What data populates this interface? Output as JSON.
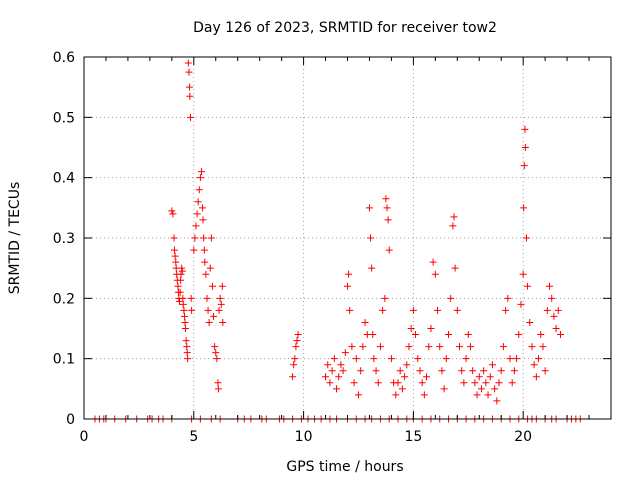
{
  "chart_data": {
    "type": "scatter",
    "title": "Day 126 of 2023, SRMTID for receiver tow2",
    "xlabel": "GPS time / hours",
    "ylabel": "SRMTID / TECUs",
    "xlim": [
      0,
      24
    ],
    "ylim": [
      0,
      0.6
    ],
    "xticks": [
      0,
      5,
      10,
      15,
      20
    ],
    "xtick_labels": [
      "0",
      "5",
      "10",
      "15",
      "20"
    ],
    "yticks": [
      0,
      0.1,
      0.2,
      0.3,
      0.4,
      0.5,
      0.6
    ],
    "ytick_labels": [
      "0",
      "0.1",
      "0.2",
      "0.3",
      "0.4",
      "0.5",
      "0.6"
    ],
    "grid": true,
    "marker": "+",
    "color": "#ff0000",
    "series": [
      {
        "name": "tow2",
        "points": [
          [
            0.5,
            0
          ],
          [
            0.7,
            0
          ],
          [
            0.9,
            0
          ],
          [
            1.0,
            0
          ],
          [
            1.4,
            0
          ],
          [
            1.9,
            0
          ],
          [
            2.4,
            0
          ],
          [
            2.9,
            0
          ],
          [
            3.1,
            0
          ],
          [
            3.4,
            0
          ],
          [
            3.6,
            0
          ],
          [
            4.0,
            0
          ],
          [
            4.9,
            0
          ],
          [
            5.3,
            0
          ],
          [
            5.8,
            0
          ],
          [
            6.2,
            0
          ],
          [
            7.0,
            0
          ],
          [
            7.3,
            0
          ],
          [
            7.6,
            0
          ],
          [
            8.1,
            0
          ],
          [
            8.3,
            0
          ],
          [
            8.9,
            0
          ],
          [
            9.1,
            0
          ],
          [
            9.5,
            0
          ],
          [
            9.9,
            0
          ],
          [
            10.2,
            0
          ],
          [
            10.5,
            0
          ],
          [
            10.8,
            0
          ],
          [
            11.2,
            0
          ],
          [
            11.5,
            0
          ],
          [
            12.0,
            0
          ],
          [
            12.4,
            0
          ],
          [
            12.8,
            0
          ],
          [
            13.1,
            0
          ],
          [
            13.5,
            0
          ],
          [
            13.9,
            0
          ],
          [
            14.3,
            0
          ],
          [
            14.7,
            0
          ],
          [
            15.0,
            0
          ],
          [
            15.4,
            0
          ],
          [
            15.8,
            0
          ],
          [
            16.2,
            0
          ],
          [
            16.6,
            0
          ],
          [
            17.0,
            0
          ],
          [
            17.4,
            0
          ],
          [
            17.8,
            0
          ],
          [
            18.2,
            0
          ],
          [
            18.6,
            0
          ],
          [
            19.0,
            0
          ],
          [
            19.4,
            0
          ],
          [
            19.8,
            0
          ],
          [
            20.2,
            0
          ],
          [
            20.4,
            0
          ],
          [
            20.6,
            0
          ],
          [
            21.0,
            0
          ],
          [
            21.3,
            0
          ],
          [
            21.5,
            0
          ],
          [
            22.0,
            0
          ],
          [
            22.2,
            0
          ],
          [
            22.4,
            0
          ],
          [
            22.6,
            0
          ],
          [
            4.0,
            0.345
          ],
          [
            4.05,
            0.34
          ],
          [
            4.1,
            0.3
          ],
          [
            4.12,
            0.28
          ],
          [
            4.15,
            0.27
          ],
          [
            4.18,
            0.26
          ],
          [
            4.2,
            0.25
          ],
          [
            4.22,
            0.24
          ],
          [
            4.25,
            0.23
          ],
          [
            4.28,
            0.22
          ],
          [
            4.3,
            0.21
          ],
          [
            4.32,
            0.2
          ],
          [
            4.35,
            0.195
          ],
          [
            4.38,
            0.21
          ],
          [
            4.4,
            0.23
          ],
          [
            4.42,
            0.24
          ],
          [
            4.45,
            0.25
          ],
          [
            4.48,
            0.245
          ],
          [
            4.5,
            0.2
          ],
          [
            4.52,
            0.19
          ],
          [
            4.55,
            0.18
          ],
          [
            4.58,
            0.17
          ],
          [
            4.6,
            0.16
          ],
          [
            4.62,
            0.15
          ],
          [
            4.65,
            0.13
          ],
          [
            4.68,
            0.12
          ],
          [
            4.7,
            0.11
          ],
          [
            4.72,
            0.1
          ],
          [
            4.75,
            0.59
          ],
          [
            4.78,
            0.575
          ],
          [
            4.8,
            0.55
          ],
          [
            4.82,
            0.535
          ],
          [
            4.85,
            0.5
          ],
          [
            4.88,
            0.2
          ],
          [
            4.9,
            0.18
          ],
          [
            5.0,
            0.28
          ],
          [
            5.05,
            0.3
          ],
          [
            5.1,
            0.32
          ],
          [
            5.15,
            0.34
          ],
          [
            5.2,
            0.36
          ],
          [
            5.25,
            0.38
          ],
          [
            5.3,
            0.4
          ],
          [
            5.35,
            0.41
          ],
          [
            5.4,
            0.35
          ],
          [
            5.42,
            0.33
          ],
          [
            5.45,
            0.3
          ],
          [
            5.48,
            0.28
          ],
          [
            5.5,
            0.26
          ],
          [
            5.55,
            0.24
          ],
          [
            5.6,
            0.2
          ],
          [
            5.65,
            0.18
          ],
          [
            5.7,
            0.16
          ],
          [
            5.75,
            0.25
          ],
          [
            5.8,
            0.3
          ],
          [
            5.85,
            0.22
          ],
          [
            5.9,
            0.17
          ],
          [
            5.95,
            0.12
          ],
          [
            6.0,
            0.11
          ],
          [
            6.05,
            0.1
          ],
          [
            6.1,
            0.06
          ],
          [
            6.12,
            0.05
          ],
          [
            6.15,
            0.18
          ],
          [
            6.2,
            0.2
          ],
          [
            6.25,
            0.19
          ],
          [
            6.3,
            0.22
          ],
          [
            6.32,
            0.16
          ],
          [
            9.5,
            0.07
          ],
          [
            9.55,
            0.09
          ],
          [
            9.6,
            0.1
          ],
          [
            9.65,
            0.12
          ],
          [
            9.7,
            0.13
          ],
          [
            9.75,
            0.14
          ],
          [
            11.0,
            0.07
          ],
          [
            11.1,
            0.09
          ],
          [
            11.2,
            0.06
          ],
          [
            11.3,
            0.08
          ],
          [
            11.4,
            0.1
          ],
          [
            11.5,
            0.05
          ],
          [
            11.6,
            0.07
          ],
          [
            11.7,
            0.09
          ],
          [
            11.8,
            0.08
          ],
          [
            11.9,
            0.11
          ],
          [
            12.0,
            0.22
          ],
          [
            12.05,
            0.24
          ],
          [
            12.1,
            0.18
          ],
          [
            12.2,
            0.12
          ],
          [
            12.3,
            0.06
          ],
          [
            12.4,
            0.1
          ],
          [
            12.5,
            0.04
          ],
          [
            12.6,
            0.08
          ],
          [
            12.7,
            0.12
          ],
          [
            12.8,
            0.16
          ],
          [
            12.9,
            0.14
          ],
          [
            13.0,
            0.35
          ],
          [
            13.05,
            0.3
          ],
          [
            13.1,
            0.25
          ],
          [
            13.15,
            0.14
          ],
          [
            13.2,
            0.1
          ],
          [
            13.3,
            0.08
          ],
          [
            13.4,
            0.06
          ],
          [
            13.5,
            0.12
          ],
          [
            13.6,
            0.18
          ],
          [
            13.7,
            0.2
          ],
          [
            13.75,
            0.365
          ],
          [
            13.8,
            0.35
          ],
          [
            13.85,
            0.33
          ],
          [
            13.9,
            0.28
          ],
          [
            14.0,
            0.1
          ],
          [
            14.1,
            0.06
          ],
          [
            14.2,
            0.04
          ],
          [
            14.3,
            0.06
          ],
          [
            14.4,
            0.08
          ],
          [
            14.5,
            0.05
          ],
          [
            14.6,
            0.07
          ],
          [
            14.7,
            0.09
          ],
          [
            14.8,
            0.12
          ],
          [
            14.9,
            0.15
          ],
          [
            15.0,
            0.18
          ],
          [
            15.1,
            0.14
          ],
          [
            15.2,
            0.1
          ],
          [
            15.3,
            0.08
          ],
          [
            15.4,
            0.06
          ],
          [
            15.5,
            0.04
          ],
          [
            15.6,
            0.07
          ],
          [
            15.7,
            0.12
          ],
          [
            15.8,
            0.15
          ],
          [
            15.9,
            0.26
          ],
          [
            16.0,
            0.24
          ],
          [
            16.1,
            0.18
          ],
          [
            16.2,
            0.12
          ],
          [
            16.3,
            0.08
          ],
          [
            16.4,
            0.05
          ],
          [
            16.5,
            0.1
          ],
          [
            16.6,
            0.14
          ],
          [
            16.7,
            0.2
          ],
          [
            16.8,
            0.32
          ],
          [
            16.85,
            0.335
          ],
          [
            16.9,
            0.25
          ],
          [
            17.0,
            0.18
          ],
          [
            17.1,
            0.12
          ],
          [
            17.2,
            0.08
          ],
          [
            17.3,
            0.06
          ],
          [
            17.4,
            0.1
          ],
          [
            17.5,
            0.14
          ],
          [
            17.6,
            0.12
          ],
          [
            17.7,
            0.08
          ],
          [
            17.8,
            0.06
          ],
          [
            17.9,
            0.04
          ],
          [
            18.0,
            0.07
          ],
          [
            18.1,
            0.05
          ],
          [
            18.2,
            0.08
          ],
          [
            18.3,
            0.06
          ],
          [
            18.4,
            0.04
          ],
          [
            18.5,
            0.07
          ],
          [
            18.6,
            0.09
          ],
          [
            18.7,
            0.05
          ],
          [
            18.8,
            0.03
          ],
          [
            18.9,
            0.06
          ],
          [
            19.0,
            0.08
          ],
          [
            19.1,
            0.12
          ],
          [
            19.2,
            0.18
          ],
          [
            19.3,
            0.2
          ],
          [
            19.4,
            0.1
          ],
          [
            19.5,
            0.06
          ],
          [
            19.6,
            0.08
          ],
          [
            19.7,
            0.1
          ],
          [
            19.8,
            0.14
          ],
          [
            19.9,
            0.19
          ],
          [
            20.0,
            0.24
          ],
          [
            20.02,
            0.35
          ],
          [
            20.05,
            0.42
          ],
          [
            20.08,
            0.48
          ],
          [
            20.1,
            0.45
          ],
          [
            20.15,
            0.3
          ],
          [
            20.2,
            0.22
          ],
          [
            20.3,
            0.16
          ],
          [
            20.4,
            0.12
          ],
          [
            20.5,
            0.09
          ],
          [
            20.6,
            0.07
          ],
          [
            20.7,
            0.1
          ],
          [
            20.8,
            0.14
          ],
          [
            20.9,
            0.12
          ],
          [
            21.0,
            0.08
          ],
          [
            21.1,
            0.18
          ],
          [
            21.2,
            0.22
          ],
          [
            21.3,
            0.2
          ],
          [
            21.4,
            0.17
          ],
          [
            21.5,
            0.15
          ],
          [
            21.6,
            0.18
          ],
          [
            21.7,
            0.14
          ]
        ]
      }
    ]
  }
}
